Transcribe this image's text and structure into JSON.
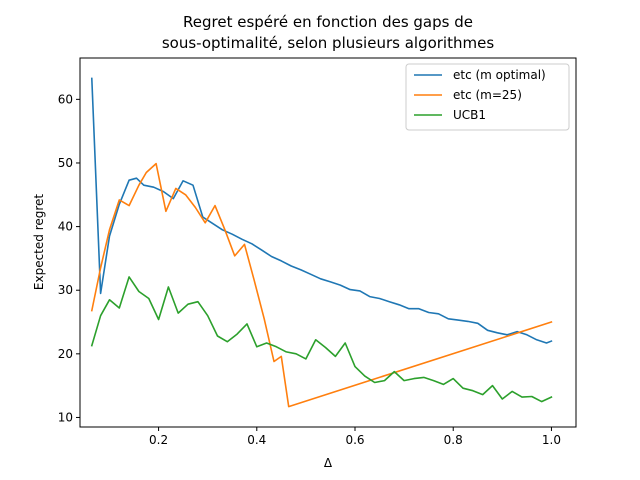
{
  "chart_data": {
    "type": "line",
    "title_lines": [
      "Regret espéré en fonction des gaps de",
      "sous-optimalité, selon plusieurs algorithmes"
    ],
    "xlabel": "Δ",
    "ylabel": "Expected regret",
    "xlim": [
      0.04,
      1.05
    ],
    "ylim": [
      8.5,
      66.5
    ],
    "xticks": [
      0.2,
      0.4,
      0.6,
      0.8,
      1.0
    ],
    "xtick_labels": [
      "0.2",
      "0.4",
      "0.6",
      "0.8",
      "1.0"
    ],
    "yticks": [
      10,
      20,
      30,
      40,
      50,
      60
    ],
    "ytick_labels": [
      "10",
      "20",
      "30",
      "40",
      "50",
      "60"
    ],
    "grid": false,
    "legend_position": "top-right",
    "series": [
      {
        "name": "etc (m optimal)",
        "color": "#1f77b4",
        "points": [
          [
            0.064,
            63.3
          ],
          [
            0.082,
            29.5
          ],
          [
            0.1,
            38.5
          ],
          [
            0.12,
            43.5
          ],
          [
            0.14,
            47.3
          ],
          [
            0.155,
            47.6
          ],
          [
            0.17,
            46.5
          ],
          [
            0.19,
            46.2
          ],
          [
            0.21,
            45.5
          ],
          [
            0.23,
            44.4
          ],
          [
            0.25,
            47.2
          ],
          [
            0.27,
            46.5
          ],
          [
            0.29,
            41.5
          ],
          [
            0.31,
            40.5
          ],
          [
            0.33,
            39.5
          ],
          [
            0.35,
            38.8
          ],
          [
            0.37,
            38.0
          ],
          [
            0.39,
            37.3
          ],
          [
            0.41,
            36.3
          ],
          [
            0.43,
            35.3
          ],
          [
            0.45,
            34.6
          ],
          [
            0.47,
            33.8
          ],
          [
            0.49,
            33.2
          ],
          [
            0.51,
            32.5
          ],
          [
            0.53,
            31.8
          ],
          [
            0.55,
            31.3
          ],
          [
            0.57,
            30.8
          ],
          [
            0.59,
            30.1
          ],
          [
            0.61,
            29.9
          ],
          [
            0.63,
            29.0
          ],
          [
            0.65,
            28.7
          ],
          [
            0.67,
            28.2
          ],
          [
            0.69,
            27.7
          ],
          [
            0.71,
            27.1
          ],
          [
            0.73,
            27.1
          ],
          [
            0.75,
            26.5
          ],
          [
            0.77,
            26.3
          ],
          [
            0.79,
            25.5
          ],
          [
            0.81,
            25.3
          ],
          [
            0.83,
            25.1
          ],
          [
            0.85,
            24.8
          ],
          [
            0.87,
            23.7
          ],
          [
            0.89,
            23.3
          ],
          [
            0.91,
            23.0
          ],
          [
            0.93,
            23.5
          ],
          [
            0.95,
            23.0
          ],
          [
            0.97,
            22.2
          ],
          [
            0.99,
            21.7
          ],
          [
            1.0,
            22.0
          ]
        ]
      },
      {
        "name": "etc (m=25)",
        "color": "#ff7f0e",
        "points": [
          [
            0.064,
            26.8
          ],
          [
            0.082,
            33.5
          ],
          [
            0.1,
            39.5
          ],
          [
            0.12,
            44.2
          ],
          [
            0.14,
            43.3
          ],
          [
            0.16,
            46.5
          ],
          [
            0.175,
            48.5
          ],
          [
            0.195,
            49.9
          ],
          [
            0.215,
            42.4
          ],
          [
            0.235,
            46.0
          ],
          [
            0.255,
            45.0
          ],
          [
            0.275,
            43.0
          ],
          [
            0.295,
            40.6
          ],
          [
            0.315,
            43.3
          ],
          [
            0.335,
            39.5
          ],
          [
            0.355,
            35.4
          ],
          [
            0.375,
            37.2
          ],
          [
            0.395,
            31.5
          ],
          [
            0.415,
            25.5
          ],
          [
            0.435,
            18.8
          ],
          [
            0.45,
            19.6
          ],
          [
            0.465,
            11.7
          ],
          [
            1.0,
            25.0
          ]
        ]
      },
      {
        "name": "UCB1",
        "color": "#2ca02c",
        "points": [
          [
            0.064,
            21.3
          ],
          [
            0.082,
            26.0
          ],
          [
            0.1,
            28.5
          ],
          [
            0.12,
            27.2
          ],
          [
            0.14,
            32.1
          ],
          [
            0.16,
            29.8
          ],
          [
            0.18,
            28.7
          ],
          [
            0.2,
            25.4
          ],
          [
            0.22,
            30.5
          ],
          [
            0.24,
            26.4
          ],
          [
            0.26,
            27.8
          ],
          [
            0.28,
            28.2
          ],
          [
            0.3,
            26.0
          ],
          [
            0.32,
            22.8
          ],
          [
            0.34,
            21.9
          ],
          [
            0.36,
            23.1
          ],
          [
            0.38,
            24.7
          ],
          [
            0.4,
            21.1
          ],
          [
            0.42,
            21.7
          ],
          [
            0.44,
            21.1
          ],
          [
            0.46,
            20.3
          ],
          [
            0.48,
            20.0
          ],
          [
            0.5,
            19.2
          ],
          [
            0.52,
            22.2
          ],
          [
            0.54,
            21.0
          ],
          [
            0.56,
            19.6
          ],
          [
            0.58,
            21.7
          ],
          [
            0.6,
            18.0
          ],
          [
            0.62,
            16.5
          ],
          [
            0.64,
            15.5
          ],
          [
            0.66,
            15.8
          ],
          [
            0.68,
            17.2
          ],
          [
            0.7,
            15.8
          ],
          [
            0.72,
            16.1
          ],
          [
            0.74,
            16.3
          ],
          [
            0.76,
            15.8
          ],
          [
            0.78,
            15.2
          ],
          [
            0.8,
            16.1
          ],
          [
            0.82,
            14.6
          ],
          [
            0.84,
            14.2
          ],
          [
            0.86,
            13.6
          ],
          [
            0.88,
            15.0
          ],
          [
            0.9,
            12.9
          ],
          [
            0.92,
            14.1
          ],
          [
            0.94,
            13.2
          ],
          [
            0.96,
            13.3
          ],
          [
            0.98,
            12.5
          ],
          [
            1.0,
            13.2
          ]
        ]
      }
    ]
  }
}
